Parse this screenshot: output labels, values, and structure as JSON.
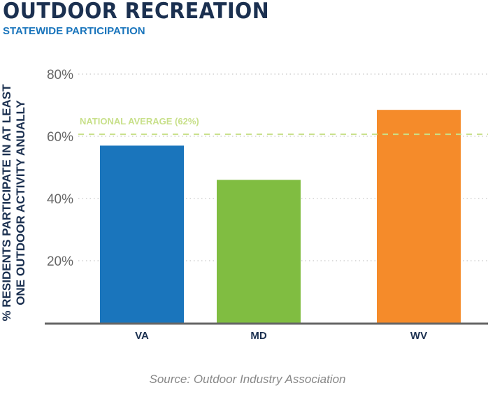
{
  "header": {
    "title": "OUTDOOR RECREATION",
    "subtitle": "STATEWIDE PARTICIPATION"
  },
  "source": "Source: Outdoor Industry Association",
  "chart_data": {
    "type": "bar",
    "title": "OUTDOOR RECREATION",
    "subtitle": "STATEWIDE PARTICIPATION",
    "ylabel": "% RESIDENTS PARTICIPATE IN AT LEAST ONE OUTDOOR ACTIVITY ANUALLY",
    "xlabel": "",
    "categories": [
      "VA",
      "MD",
      "WV"
    ],
    "values": [
      57,
      46,
      68.5
    ],
    "colors": [
      "#1a75bc",
      "#80bd41",
      "#f58b2a"
    ],
    "ylim": [
      0,
      80
    ],
    "yticks": [
      20,
      40,
      60,
      80
    ],
    "ytick_labels": [
      "20%",
      "40%",
      "60%",
      "80%"
    ],
    "grid": true,
    "reference_line": {
      "label": "NATIONAL AVERAGE (62%)",
      "value": 62,
      "color": "#c8e08a"
    }
  }
}
